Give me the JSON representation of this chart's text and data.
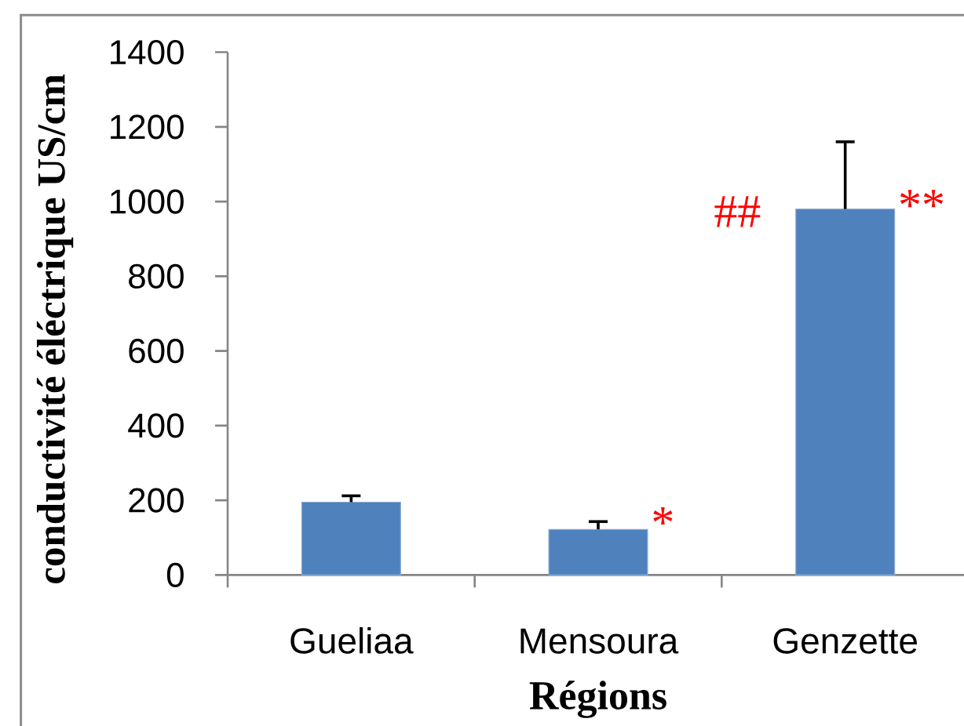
{
  "chart_data": {
    "type": "bar",
    "xlabel": "Régions",
    "ylabel": "conductivité éléctrique US/cm",
    "categories": [
      "Gueliaa",
      "Mensoura",
      "Genzette"
    ],
    "values": [
      195,
      122,
      980
    ],
    "errors": [
      [
        195,
        212
      ],
      [
        122,
        143
      ],
      [
        980,
        1160
      ]
    ],
    "color": "#4f81bd",
    "ylim": [
      0,
      1400
    ],
    "yticks": [
      0,
      200,
      400,
      600,
      800,
      1000,
      1200,
      1400
    ],
    "annotations": [
      {
        "text": "*",
        "x": "Mensoura",
        "y": 140
      },
      {
        "text": "##",
        "x": "Genzette",
        "y": 973
      },
      {
        "text": "**",
        "x": "Genzette",
        "y": 990
      }
    ]
  }
}
